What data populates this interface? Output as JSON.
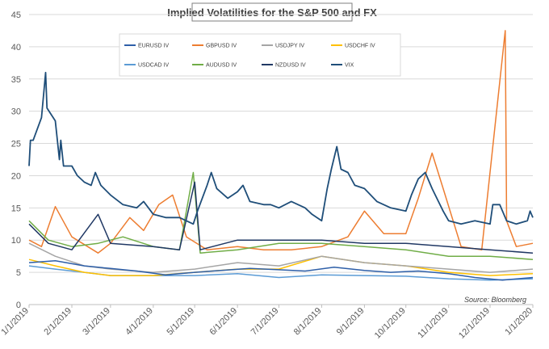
{
  "chart_data": {
    "type": "line",
    "title": "Implied Volatilities for the S&P 500 and FX",
    "source": "Source: Bloomberg",
    "ylim": [
      0,
      45
    ],
    "yticks": [
      0,
      5,
      10,
      15,
      20,
      25,
      30,
      35,
      40,
      45
    ],
    "xlim": [
      "1/1/2019",
      "1/1/2020"
    ],
    "xticks": [
      "1/1/2019",
      "2/1/2019",
      "3/1/2019",
      "4/1/2019",
      "5/1/2019",
      "6/1/2019",
      "7/1/2019",
      "8/1/2019",
      "9/1/2019",
      "10/1/2019",
      "11/1/2019",
      "12/1/2019",
      "1/1/2020"
    ],
    "grid": "horizontal",
    "legend_position": "top-inside",
    "series": [
      {
        "name": "EURUSD IV",
        "color": "#2E5FA8",
        "points": [
          [
            "1/1/2019",
            6.5
          ],
          [
            "1/20/2019",
            6.8
          ],
          [
            "2/10/2019",
            6.0
          ],
          [
            "3/1/2019",
            5.6
          ],
          [
            "3/20/2019",
            5.2
          ],
          [
            "4/10/2019",
            4.6
          ],
          [
            "5/1/2019",
            5.0
          ],
          [
            "5/20/2019",
            5.3
          ],
          [
            "6/10/2019",
            5.6
          ],
          [
            "7/1/2019",
            5.4
          ],
          [
            "7/20/2019",
            5.2
          ],
          [
            "8/10/2019",
            5.8
          ],
          [
            "9/1/2019",
            5.3
          ],
          [
            "9/20/2019",
            5.0
          ],
          [
            "10/10/2019",
            5.2
          ],
          [
            "11/1/2019",
            4.8
          ],
          [
            "11/20/2019",
            4.2
          ],
          [
            "12/10/2019",
            3.8
          ],
          [
            "1/1/2020",
            4.2
          ]
        ]
      },
      {
        "name": "GBPUSD IV",
        "color": "#ED7D31",
        "points": [
          [
            "1/1/2019",
            10.0
          ],
          [
            "1/10/2019",
            9.0
          ],
          [
            "1/20/2019",
            15.2
          ],
          [
            "2/1/2019",
            10.5
          ],
          [
            "2/20/2019",
            8.0
          ],
          [
            "3/1/2019",
            9.5
          ],
          [
            "3/15/2019",
            13.5
          ],
          [
            "3/25/2019",
            11.5
          ],
          [
            "4/5/2019",
            15.5
          ],
          [
            "4/15/2019",
            17.0
          ],
          [
            "4/25/2019",
            10.5
          ],
          [
            "5/10/2019",
            8.5
          ],
          [
            "6/1/2019",
            9.0
          ],
          [
            "6/20/2019",
            8.5
          ],
          [
            "7/10/2019",
            8.5
          ],
          [
            "8/1/2019",
            9.0
          ],
          [
            "8/20/2019",
            10.5
          ],
          [
            "9/1/2019",
            14.5
          ],
          [
            "9/15/2019",
            11.0
          ],
          [
            "10/1/2019",
            11.0
          ],
          [
            "10/10/2019",
            16.5
          ],
          [
            "10/20/2019",
            23.5
          ],
          [
            "10/28/2019",
            18.0
          ],
          [
            "11/10/2019",
            9.0
          ],
          [
            "11/25/2019",
            8.5
          ],
          [
            "12/12/2019",
            42.5
          ],
          [
            "12/13/2019",
            13.0
          ],
          [
            "12/20/2019",
            9.0
          ],
          [
            "1/1/2020",
            9.5
          ]
        ]
      },
      {
        "name": "USDJPY IV",
        "color": "#A5A5A5",
        "points": [
          [
            "1/1/2019",
            9.5
          ],
          [
            "1/20/2019",
            7.5
          ],
          [
            "2/10/2019",
            6.0
          ],
          [
            "3/1/2019",
            5.5
          ],
          [
            "4/1/2019",
            5.0
          ],
          [
            "5/1/2019",
            5.5
          ],
          [
            "6/1/2019",
            6.5
          ],
          [
            "7/1/2019",
            6.0
          ],
          [
            "8/1/2019",
            7.5
          ],
          [
            "9/1/2019",
            6.5
          ],
          [
            "10/1/2019",
            6.0
          ],
          [
            "11/1/2019",
            5.5
          ],
          [
            "12/1/2019",
            5.0
          ],
          [
            "1/1/2020",
            5.5
          ]
        ]
      },
      {
        "name": "USDCHF IV",
        "color": "#FFC000",
        "points": [
          [
            "1/1/2019",
            7.0
          ],
          [
            "1/20/2019",
            6.0
          ],
          [
            "2/10/2019",
            5.0
          ],
          [
            "3/1/2019",
            4.5
          ],
          [
            "4/1/2019",
            4.5
          ],
          [
            "5/1/2019",
            5.0
          ],
          [
            "6/1/2019",
            5.5
          ],
          [
            "7/1/2019",
            5.5
          ],
          [
            "8/1/2019",
            7.5
          ],
          [
            "9/1/2019",
            6.5
          ],
          [
            "10/1/2019",
            6.0
          ],
          [
            "11/1/2019",
            5.0
          ],
          [
            "12/1/2019",
            4.5
          ],
          [
            "1/1/2020",
            4.8
          ]
        ]
      },
      {
        "name": "USDCAD IV",
        "color": "#5B9BD5",
        "points": [
          [
            "1/1/2019",
            6.0
          ],
          [
            "1/20/2019",
            5.5
          ],
          [
            "2/10/2019",
            5.0
          ],
          [
            "3/1/2019",
            4.5
          ],
          [
            "4/1/2019",
            4.5
          ],
          [
            "5/1/2019",
            4.5
          ],
          [
            "6/1/2019",
            4.8
          ],
          [
            "7/1/2019",
            4.2
          ],
          [
            "8/1/2019",
            4.6
          ],
          [
            "9/1/2019",
            4.5
          ],
          [
            "10/1/2019",
            4.4
          ],
          [
            "11/1/2019",
            4.0
          ],
          [
            "12/1/2019",
            3.8
          ],
          [
            "1/1/2020",
            4.0
          ]
        ]
      },
      {
        "name": "AUDUSD IV",
        "color": "#70AD47",
        "points": [
          [
            "1/1/2019",
            13.0
          ],
          [
            "1/15/2019",
            10.0
          ],
          [
            "2/1/2019",
            9.0
          ],
          [
            "2/20/2019",
            9.5
          ],
          [
            "3/10/2019",
            10.5
          ],
          [
            "4/1/2019",
            9.0
          ],
          [
            "4/20/2019",
            8.5
          ],
          [
            "4/30/2019",
            20.5
          ],
          [
            "5/5/2019",
            8.0
          ],
          [
            "6/1/2019",
            8.5
          ],
          [
            "7/1/2019",
            9.5
          ],
          [
            "8/1/2019",
            9.5
          ],
          [
            "9/1/2019",
            9.0
          ],
          [
            "10/1/2019",
            8.5
          ],
          [
            "11/1/2019",
            7.5
          ],
          [
            "12/1/2019",
            7.5
          ],
          [
            "1/1/2020",
            7.0
          ]
        ]
      },
      {
        "name": "NZDUSD IV",
        "color": "#203864",
        "points": [
          [
            "1/1/2019",
            12.5
          ],
          [
            "1/15/2019",
            9.5
          ],
          [
            "2/1/2019",
            8.5
          ],
          [
            "2/20/2019",
            14.0
          ],
          [
            "3/1/2019",
            9.5
          ],
          [
            "4/1/2019",
            9.0
          ],
          [
            "4/20/2019",
            8.5
          ],
          [
            "5/1/2019",
            19.0
          ],
          [
            "5/5/2019",
            8.5
          ],
          [
            "6/1/2019",
            10.0
          ],
          [
            "7/1/2019",
            10.0
          ],
          [
            "8/1/2019",
            10.0
          ],
          [
            "9/1/2019",
            9.5
          ],
          [
            "10/1/2019",
            9.5
          ],
          [
            "11/1/2019",
            9.0
          ],
          [
            "12/1/2019",
            8.5
          ],
          [
            "1/1/2020",
            8.0
          ]
        ]
      },
      {
        "name": "VIX",
        "color": "#1F4E79",
        "points": [
          [
            "1/1/2019",
            21.5
          ],
          [
            "1/2/2019",
            25.5
          ],
          [
            "1/4/2019",
            25.5
          ],
          [
            "1/10/2019",
            29.0
          ],
          [
            "1/13/2019",
            36.0
          ],
          [
            "1/14/2019",
            30.5
          ],
          [
            "1/20/2019",
            28.5
          ],
          [
            "1/23/2019",
            22.5
          ],
          [
            "1/24/2019",
            25.5
          ],
          [
            "1/26/2019",
            21.5
          ],
          [
            "2/1/2019",
            21.5
          ],
          [
            "2/5/2019",
            20.0
          ],
          [
            "2/10/2019",
            19.0
          ],
          [
            "2/15/2019",
            18.5
          ],
          [
            "2/18/2019",
            20.5
          ],
          [
            "2/22/2019",
            18.5
          ],
          [
            "3/1/2019",
            17.0
          ],
          [
            "3/10/2019",
            15.5
          ],
          [
            "3/20/2019",
            15.0
          ],
          [
            "3/25/2019",
            16.0
          ],
          [
            "4/1/2019",
            14.0
          ],
          [
            "4/10/2019",
            13.5
          ],
          [
            "4/20/2019",
            13.5
          ],
          [
            "4/30/2019",
            12.5
          ],
          [
            "5/3/2019",
            14.5
          ],
          [
            "5/10/2019",
            18.5
          ],
          [
            "5/13/2019",
            20.5
          ],
          [
            "5/17/2019",
            18.0
          ],
          [
            "5/25/2019",
            16.5
          ],
          [
            "6/1/2019",
            17.5
          ],
          [
            "6/5/2019",
            18.5
          ],
          [
            "6/10/2019",
            16.0
          ],
          [
            "6/20/2019",
            15.5
          ],
          [
            "6/25/2019",
            15.5
          ],
          [
            "7/1/2019",
            15.0
          ],
          [
            "7/10/2019",
            16.0
          ],
          [
            "7/20/2019",
            15.0
          ],
          [
            "7/25/2019",
            14.0
          ],
          [
            "8/1/2019",
            13.0
          ],
          [
            "8/5/2019",
            18.0
          ],
          [
            "8/8/2019",
            21.0
          ],
          [
            "8/12/2019",
            24.5
          ],
          [
            "8/15/2019",
            21.0
          ],
          [
            "8/20/2019",
            20.5
          ],
          [
            "8/25/2019",
            18.5
          ],
          [
            "9/1/2019",
            18.0
          ],
          [
            "9/10/2019",
            16.0
          ],
          [
            "9/20/2019",
            15.0
          ],
          [
            "10/1/2019",
            14.5
          ],
          [
            "10/5/2019",
            17.0
          ],
          [
            "10/10/2019",
            19.5
          ],
          [
            "10/15/2019",
            20.5
          ],
          [
            "10/20/2019",
            18.0
          ],
          [
            "10/28/2019",
            14.5
          ],
          [
            "11/1/2019",
            13.0
          ],
          [
            "11/10/2019",
            12.5
          ],
          [
            "11/20/2019",
            13.0
          ],
          [
            "12/1/2019",
            12.5
          ],
          [
            "12/3/2019",
            15.5
          ],
          [
            "12/8/2019",
            15.5
          ],
          [
            "12/13/2019",
            13.0
          ],
          [
            "12/20/2019",
            12.5
          ],
          [
            "12/28/2019",
            13.0
          ],
          [
            "12/30/2019",
            14.5
          ],
          [
            "1/1/2020",
            13.5
          ]
        ]
      }
    ]
  }
}
